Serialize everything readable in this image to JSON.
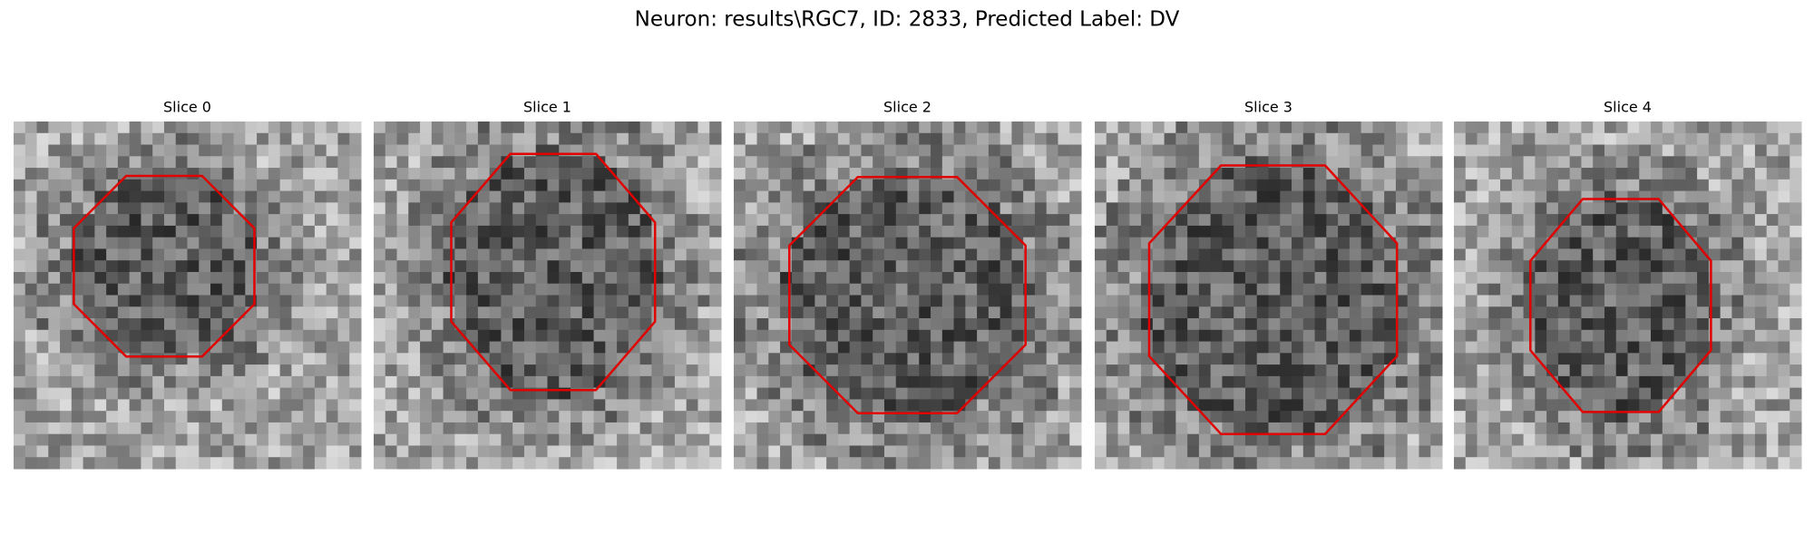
{
  "header": {
    "title": "Neuron: results\\RGC7, ID: 2833, Predicted Label: DV"
  },
  "panels": [
    {
      "title": "Slice 0"
    },
    {
      "title": "Slice 1"
    },
    {
      "title": "Slice 2"
    },
    {
      "title": "Slice 3"
    },
    {
      "title": "Slice 4"
    }
  ]
}
